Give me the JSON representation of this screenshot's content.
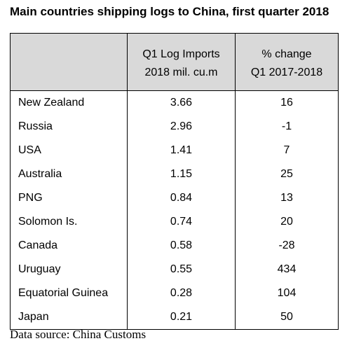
{
  "chart_data": {
    "type": "table",
    "title": "Main countries shipping logs to China, first quarter 2018",
    "columns": [
      {
        "line1": "",
        "line2": ""
      },
      {
        "line1": "Q1 Log Imports",
        "line2": "2018 mil. cu.m"
      },
      {
        "line1": "% change",
        "line2": "Q1 2017-2018"
      }
    ],
    "rows": [
      {
        "country": "New Zealand",
        "imports": "3.66",
        "change": "16"
      },
      {
        "country": "Russia",
        "imports": "2.96",
        "change": "-1"
      },
      {
        "country": "USA",
        "imports": "1.41",
        "change": "7"
      },
      {
        "country": "Australia",
        "imports": "1.15",
        "change": "25"
      },
      {
        "country": "PNG",
        "imports": "0.84",
        "change": "13"
      },
      {
        "country": "Solomon Is.",
        "imports": "0.74",
        "change": "20"
      },
      {
        "country": "Canada",
        "imports": "0.58",
        "change": "-28"
      },
      {
        "country": "Uruguay",
        "imports": "0.55",
        "change": "434"
      },
      {
        "country": "Equatorial Guinea",
        "imports": "0.28",
        "change": "104"
      },
      {
        "country": "Japan",
        "imports": "0.21",
        "change": "50"
      }
    ],
    "source": "Data source: China Customs"
  },
  "colors": {
    "header_background": "#d9d9d9",
    "border": "#000000"
  }
}
